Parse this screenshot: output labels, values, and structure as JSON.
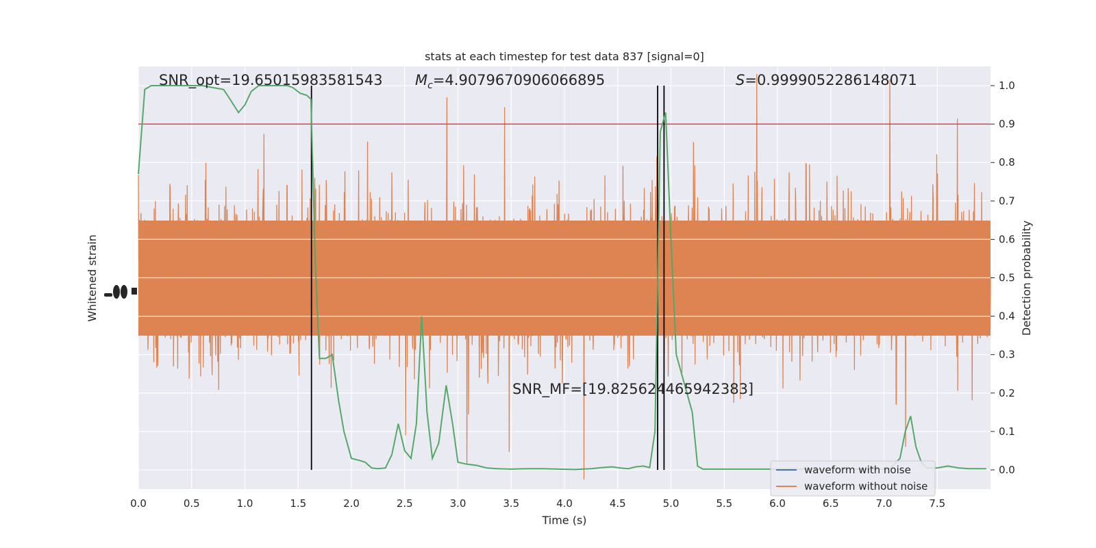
{
  "chart_data": {
    "type": "line",
    "title": "stats at each timestep for test data 837 [signal=0]",
    "xlabel": "Time (s)",
    "ylabel_left": "Whitened strain",
    "ylabel_right": "Detection probability",
    "xlim": [
      0,
      8
    ],
    "ylim_right": [
      -0.05,
      1.05
    ],
    "x_ticks": [
      "0.0",
      "0.5",
      "1.0",
      "1.5",
      "2.0",
      "2.5",
      "3.0",
      "3.5",
      "4.0",
      "4.5",
      "5.0",
      "5.5",
      "6.0",
      "6.5",
      "7.0",
      "7.5"
    ],
    "y_ticks_right": [
      "0.0",
      "0.1",
      "0.2",
      "0.3",
      "0.4",
      "0.5",
      "0.6",
      "0.7",
      "0.8",
      "0.9",
      "1.0"
    ],
    "grid": true,
    "legend_position": "lower-right",
    "annotations": {
      "snr_opt": "SNR_opt=19.65015983581543",
      "mc_symbol": "M",
      "mc_subscript": "c",
      "mc_value": "=4.9079670906066895",
      "s_symbol": "S",
      "s_value": "=0.9999052286148071",
      "snr_mf": "SNR_MF=[19.825624465942383]"
    },
    "threshold": {
      "value": 0.9,
      "color": "#c44e52"
    },
    "vertical_lines": [
      1.625,
      4.875,
      4.935
    ],
    "series": [
      {
        "name": "waveform with noise",
        "color": "#4c72b0",
        "values": []
      },
      {
        "name": "waveform without noise",
        "color": "#dd8452",
        "values": []
      },
      {
        "color": "#55a868",
        "x": [
          0.0,
          0.06,
          0.12,
          0.2,
          0.3,
          0.4,
          0.5,
          0.6,
          0.7,
          0.8,
          0.86,
          0.94,
          1.0,
          1.06,
          1.13,
          1.2,
          1.3,
          1.4,
          1.45,
          1.52,
          1.58,
          1.62,
          1.66,
          1.7,
          1.76,
          1.82,
          1.88,
          1.93,
          2.0,
          2.07,
          2.13,
          2.19,
          2.25,
          2.32,
          2.38,
          2.44,
          2.5,
          2.56,
          2.61,
          2.66,
          2.71,
          2.76,
          2.82,
          2.89,
          2.95,
          3.0,
          3.08,
          3.17,
          3.27,
          3.37,
          3.5,
          3.65,
          3.8,
          3.95,
          4.1,
          4.25,
          4.35,
          4.45,
          4.52,
          4.6,
          4.67,
          4.74,
          4.8,
          4.85,
          4.9,
          4.95,
          5.0,
          5.05,
          5.1,
          5.15,
          5.2,
          5.25,
          5.3,
          5.4,
          5.5,
          5.6,
          5.75,
          5.9,
          6.1,
          6.3,
          6.5,
          6.7,
          6.9,
          7.05,
          7.15,
          7.2,
          7.25,
          7.3,
          7.35,
          7.4,
          7.5,
          7.6,
          7.7,
          7.8,
          7.9,
          7.96
        ],
        "y": [
          0.77,
          0.99,
          1.0,
          1.0,
          1.0,
          1.0,
          1.0,
          1.0,
          0.995,
          0.99,
          0.965,
          0.93,
          0.95,
          0.985,
          1.0,
          1.0,
          1.0,
          1.0,
          0.995,
          0.98,
          0.975,
          0.965,
          0.55,
          0.29,
          0.29,
          0.3,
          0.18,
          0.1,
          0.03,
          0.025,
          0.02,
          0.005,
          0.003,
          0.005,
          0.04,
          0.12,
          0.05,
          0.03,
          0.12,
          0.4,
          0.15,
          0.03,
          0.07,
          0.22,
          0.12,
          0.02,
          0.015,
          0.012,
          0.005,
          0.003,
          0.002,
          0.003,
          0.003,
          0.002,
          0.001,
          0.003,
          0.006,
          0.008,
          0.005,
          0.003,
          0.008,
          0.01,
          0.006,
          0.1,
          0.88,
          0.93,
          0.6,
          0.3,
          0.25,
          0.2,
          0.15,
          0.01,
          0.002,
          0.002,
          0.002,
          0.002,
          0.002,
          0.002,
          0.002,
          0.002,
          0.002,
          0.002,
          0.002,
          0.002,
          0.03,
          0.1,
          0.14,
          0.06,
          0.02,
          0.005,
          0.005,
          0.01,
          0.005,
          0.003,
          0.003,
          0.003
        ]
      }
    ]
  }
}
